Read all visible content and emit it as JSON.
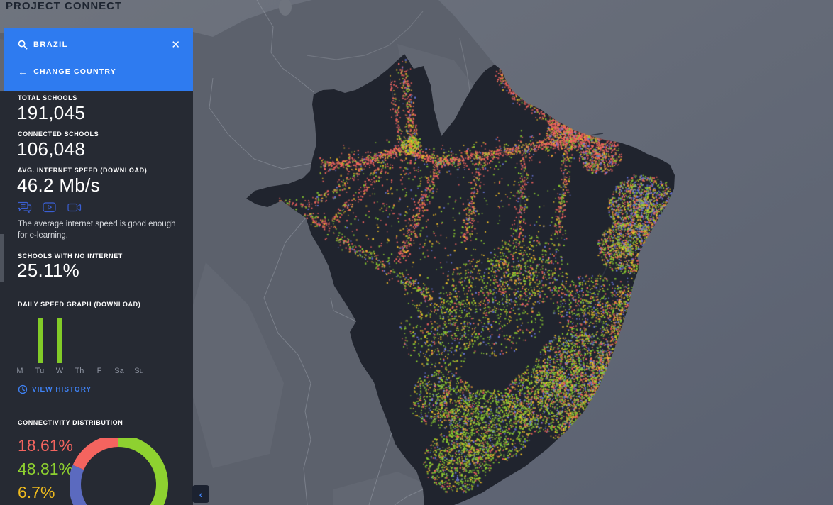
{
  "app": {
    "title": "PROJECT CONNECT"
  },
  "icons": {
    "close": "✕",
    "back_arrow": "←",
    "chevron_left": "‹"
  },
  "search": {
    "query": "BRAZIL",
    "change_country_label": "CHANGE COUNTRY"
  },
  "stats": {
    "total_schools": {
      "label": "TOTAL SCHOOLS",
      "value": "191,045"
    },
    "connected_schools": {
      "label": "CONNECTED SCHOOLS",
      "value": "106,048"
    },
    "avg_speed": {
      "label": "AVG. INTERNET SPEED (DOWNLOAD)",
      "value": "46.2 Mb/s"
    },
    "capability_icons": [
      "chat-icon",
      "video-play-icon",
      "video-camera-icon"
    ],
    "speed_note": "The average internet speed is good enough for e-learning.",
    "no_internet": {
      "label": "SCHOOLS WITH NO INTERNET",
      "value": "25.11%"
    }
  },
  "daily_speed": {
    "label": "DAILY SPEED GRAPH (DOWNLOAD)",
    "view_history_label": "VIEW HISTORY"
  },
  "connectivity": {
    "label": "CONNECTIVITY DISTRIBUTION"
  },
  "chart_data": [
    {
      "type": "bar",
      "title": "DAILY SPEED GRAPH (DOWNLOAD)",
      "categories": [
        "M",
        "Tu",
        "W",
        "Th",
        "F",
        "Sa",
        "Su"
      ],
      "values": [
        0,
        46.2,
        46.2,
        0,
        0,
        0,
        0
      ],
      "ylim": [
        0,
        48
      ],
      "bar_color": "#82cb28",
      "xlabel": "",
      "ylabel": ""
    },
    {
      "type": "donut",
      "title": "CONNECTIVITY DISTRIBUTION",
      "segments": [
        {
          "label": "18.61%",
          "value": 18.61,
          "color": "#f4645f"
        },
        {
          "label": "48.81%",
          "value": 48.81,
          "color": "#8ed130"
        },
        {
          "label": "6.7%",
          "value": 6.7,
          "color": "#eeba1e"
        },
        {
          "label": "",
          "value": 25.88,
          "color": "#5b6abf"
        }
      ],
      "order_clockwise_from_top": [
        1,
        2,
        3,
        0
      ],
      "legend_position": "left"
    }
  ],
  "map": {
    "country": "Brazil",
    "colors": {
      "ocean_top": "#6f747e",
      "ocean_bottom": "#596070",
      "land": "#5c616c",
      "terrain_highlight": "#7b808a",
      "border": "#9aa0aa",
      "river": "#7e838d",
      "brazil": "#20242e",
      "brazil_river": "#2e3440",
      "lake": "#6f747e"
    },
    "dot_colors": {
      "red": "#f4645f",
      "green": "#8ed130",
      "yellow": "#f2c029",
      "blue": "#6d7ae0"
    }
  }
}
